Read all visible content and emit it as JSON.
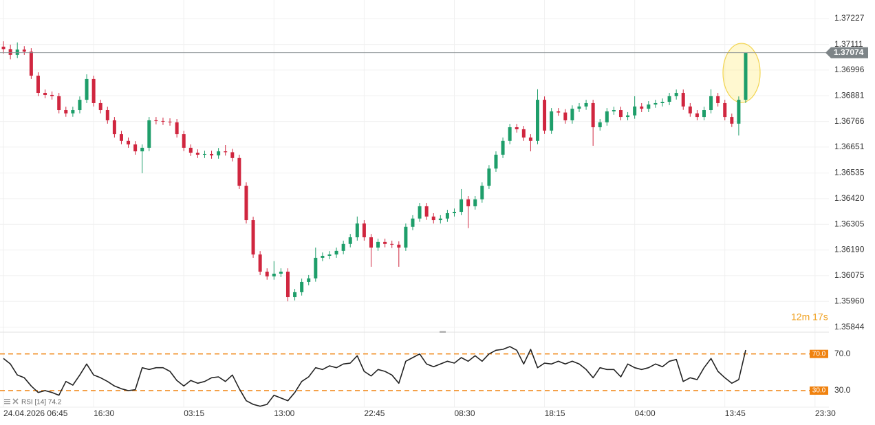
{
  "chart_data": [
    {
      "type": "candlestick",
      "up_color": "#1e9e6a",
      "down_color": "#d0263f",
      "ohlc": [
        [
          1.37101,
          1.37125,
          1.3707,
          1.3709
        ],
        [
          1.3709,
          1.3711,
          1.37044,
          1.37064
        ],
        [
          1.37064,
          1.3712,
          1.3705,
          1.37088
        ],
        [
          1.37088,
          1.37103,
          1.37064,
          1.37079
        ],
        [
          1.37079,
          1.37094,
          1.36956,
          1.36971
        ],
        [
          1.36971,
          1.36986,
          1.36879,
          1.36894
        ],
        [
          1.36894,
          1.36909,
          1.3687,
          1.36885
        ],
        [
          1.36885,
          1.369,
          1.36864,
          1.36879
        ],
        [
          1.36879,
          1.36894,
          1.36802,
          1.36817
        ],
        [
          1.36817,
          1.36832,
          1.36787,
          1.36802
        ],
        [
          1.36802,
          1.36832,
          1.36787,
          1.36817
        ],
        [
          1.36817,
          1.36878,
          1.36802,
          1.36863
        ],
        [
          1.36863,
          1.36977,
          1.36848,
          1.36956
        ],
        [
          1.36956,
          1.36971,
          1.36833,
          1.36848
        ],
        [
          1.36848,
          1.36863,
          1.36802,
          1.36817
        ],
        [
          1.36817,
          1.36832,
          1.36756,
          1.36771
        ],
        [
          1.36771,
          1.36786,
          1.36694,
          1.36709
        ],
        [
          1.36709,
          1.36724,
          1.36664,
          1.36679
        ],
        [
          1.36679,
          1.36694,
          1.36648,
          1.36663
        ],
        [
          1.36663,
          1.36678,
          1.36617,
          1.36632
        ],
        [
          1.36632,
          1.36663,
          1.36534,
          1.36648
        ],
        [
          1.36648,
          1.36786,
          1.36633,
          1.36771
        ],
        [
          1.36771,
          1.36786,
          1.36753,
          1.36768
        ],
        [
          1.36768,
          1.36783,
          1.3675,
          1.36765
        ],
        [
          1.36765,
          1.3678,
          1.36747,
          1.36762
        ],
        [
          1.36762,
          1.36777,
          1.36694,
          1.36709
        ],
        [
          1.36709,
          1.36724,
          1.36633,
          1.36648
        ],
        [
          1.36648,
          1.36663,
          1.36611,
          1.36626
        ],
        [
          1.36626,
          1.36641,
          1.36602,
          1.36617
        ],
        [
          1.36617,
          1.36635,
          1.36602,
          1.3662
        ],
        [
          1.3662,
          1.36635,
          1.36599,
          1.36614
        ],
        [
          1.36614,
          1.36647,
          1.36599,
          1.36632
        ],
        [
          1.36632,
          1.3666,
          1.36613,
          1.36628
        ],
        [
          1.36628,
          1.36643,
          1.36587,
          1.36602
        ],
        [
          1.36602,
          1.36617,
          1.36463,
          1.36478
        ],
        [
          1.36478,
          1.36493,
          1.36309,
          1.36324
        ],
        [
          1.36324,
          1.36339,
          1.36155,
          1.3617
        ],
        [
          1.3617,
          1.36185,
          1.36078,
          1.36093
        ],
        [
          1.36093,
          1.36108,
          1.36057,
          1.36072
        ],
        [
          1.36072,
          1.3614,
          1.36057,
          1.36084
        ],
        [
          1.36084,
          1.36108,
          1.36069,
          1.36093
        ],
        [
          1.36093,
          1.36108,
          1.3596,
          1.35979
        ],
        [
          1.35979,
          1.36016,
          1.35964,
          1.36001
        ],
        [
          1.36001,
          1.36062,
          1.35986,
          1.36047
        ],
        [
          1.36047,
          1.36078,
          1.36032,
          1.36063
        ],
        [
          1.36063,
          1.36201,
          1.36048,
          1.36155
        ],
        [
          1.36155,
          1.36179,
          1.3614,
          1.36164
        ],
        [
          1.36164,
          1.36185,
          1.36149,
          1.3617
        ],
        [
          1.3617,
          1.36201,
          1.36155,
          1.36186
        ],
        [
          1.36186,
          1.36232,
          1.36171,
          1.36217
        ],
        [
          1.36217,
          1.36262,
          1.36202,
          1.36247
        ],
        [
          1.36247,
          1.3634,
          1.36232,
          1.36309
        ],
        [
          1.36309,
          1.36324,
          1.36232,
          1.36247
        ],
        [
          1.36247,
          1.36262,
          1.36115,
          1.36201
        ],
        [
          1.36201,
          1.36241,
          1.36186,
          1.36226
        ],
        [
          1.36226,
          1.36241,
          1.36202,
          1.36217
        ],
        [
          1.36217,
          1.36232,
          1.36199,
          1.36214
        ],
        [
          1.36214,
          1.36229,
          1.36115,
          1.36201
        ],
        [
          1.36201,
          1.36309,
          1.36186,
          1.36294
        ],
        [
          1.36294,
          1.36346,
          1.36279,
          1.36331
        ],
        [
          1.36331,
          1.36401,
          1.36316,
          1.36386
        ],
        [
          1.36386,
          1.36401,
          1.36325,
          1.3634
        ],
        [
          1.3634,
          1.36355,
          1.36309,
          1.36324
        ],
        [
          1.36324,
          1.36346,
          1.36309,
          1.36331
        ],
        [
          1.36331,
          1.3637,
          1.36316,
          1.36355
        ],
        [
          1.36355,
          1.36376,
          1.3634,
          1.36361
        ],
        [
          1.36361,
          1.36463,
          1.36346,
          1.36417
        ],
        [
          1.36417,
          1.36432,
          1.36288,
          1.36386
        ],
        [
          1.36386,
          1.36432,
          1.36371,
          1.36417
        ],
        [
          1.36417,
          1.36493,
          1.36402,
          1.36478
        ],
        [
          1.36478,
          1.3657,
          1.36463,
          1.36555
        ],
        [
          1.36555,
          1.36632,
          1.3654,
          1.36617
        ],
        [
          1.36617,
          1.36694,
          1.36602,
          1.36679
        ],
        [
          1.36679,
          1.36755,
          1.36664,
          1.3674
        ],
        [
          1.3674,
          1.36755,
          1.36716,
          1.36731
        ],
        [
          1.36731,
          1.36746,
          1.36679,
          1.36694
        ],
        [
          1.36694,
          1.36709,
          1.36632,
          1.36679
        ],
        [
          1.36679,
          1.3691,
          1.36664,
          1.36863
        ],
        [
          1.36863,
          1.36878,
          1.3671,
          1.36725
        ],
        [
          1.36725,
          1.36826,
          1.3671,
          1.36811
        ],
        [
          1.36811,
          1.36826,
          1.36791,
          1.36806
        ],
        [
          1.36806,
          1.36821,
          1.36756,
          1.36771
        ],
        [
          1.36771,
          1.36838,
          1.36756,
          1.36823
        ],
        [
          1.36823,
          1.36848,
          1.36808,
          1.36833
        ],
        [
          1.36833,
          1.36863,
          1.36818,
          1.36848
        ],
        [
          1.36848,
          1.36863,
          1.36657,
          1.3674
        ],
        [
          1.3674,
          1.36777,
          1.36725,
          1.36762
        ],
        [
          1.36762,
          1.36826,
          1.36747,
          1.36811
        ],
        [
          1.36811,
          1.36832,
          1.36796,
          1.36817
        ],
        [
          1.36817,
          1.36832,
          1.36771,
          1.36786
        ],
        [
          1.36786,
          1.36808,
          1.36771,
          1.36793
        ],
        [
          1.36793,
          1.36879,
          1.36778,
          1.36833
        ],
        [
          1.36833,
          1.36848,
          1.36808,
          1.36823
        ],
        [
          1.36823,
          1.36857,
          1.36808,
          1.36842
        ],
        [
          1.36842,
          1.36863,
          1.36827,
          1.36848
        ],
        [
          1.36848,
          1.36869,
          1.36833,
          1.36854
        ],
        [
          1.36854,
          1.36894,
          1.36839,
          1.36879
        ],
        [
          1.36879,
          1.36909,
          1.36864,
          1.36894
        ],
        [
          1.36894,
          1.36909,
          1.36818,
          1.36833
        ],
        [
          1.36833,
          1.36848,
          1.36787,
          1.36802
        ],
        [
          1.36802,
          1.36817,
          1.36771,
          1.36786
        ],
        [
          1.36786,
          1.36832,
          1.36771,
          1.36817
        ],
        [
          1.36817,
          1.3691,
          1.36802,
          1.36879
        ],
        [
          1.36879,
          1.36894,
          1.36833,
          1.36848
        ],
        [
          1.36848,
          1.36863,
          1.36771,
          1.36786
        ],
        [
          1.36786,
          1.36801,
          1.36741,
          1.36756
        ],
        [
          1.36756,
          1.36878,
          1.36703,
          1.36863
        ],
        [
          1.36863,
          1.37074,
          1.36848,
          1.37074
        ]
      ],
      "last_price": 1.37074,
      "countdown": "12m 17s",
      "ylim": [
        1.35822,
        1.3731
      ],
      "yticks": [
        1.37227,
        1.37111,
        1.36996,
        1.36881,
        1.36766,
        1.36651,
        1.36535,
        {
          "value": 1.3642,
          "label": "1.36420"
        },
        1.36305,
        {
          "value": 1.3619,
          "label": "1.36190"
        },
        1.36075,
        {
          "value": 1.3596,
          "label": "1.35960"
        },
        1.35844
      ],
      "xlim": [
        -0.5,
        119
      ],
      "xticks": [
        {
          "value": 0,
          "label": "24.04.2026 06:45"
        },
        {
          "value": 13,
          "label": "16:30"
        },
        {
          "value": 26,
          "label": "03:15"
        },
        {
          "value": 39,
          "label": "13:00"
        },
        {
          "value": 52,
          "label": "22:45"
        },
        {
          "value": 65,
          "label": "08:30"
        },
        {
          "value": 78,
          "label": "18:15"
        },
        {
          "value": 91,
          "label": "04:00"
        },
        {
          "value": 104,
          "label": "13:45"
        },
        {
          "value": 117,
          "label": "23:30"
        }
      ],
      "grid": true
    },
    {
      "type": "line",
      "legend": "RSI [14] 74.2",
      "color": "#222222",
      "level_color": "#f0820f",
      "values": [
        65,
        59,
        47,
        44,
        35,
        28,
        30,
        28,
        25,
        40,
        36,
        47,
        59,
        47,
        44,
        40,
        35,
        32,
        30,
        31,
        55,
        53,
        55,
        55,
        51,
        41,
        35,
        41,
        38,
        40,
        44,
        45,
        40,
        47,
        32,
        19,
        15,
        13,
        15,
        25,
        22,
        19,
        28,
        40,
        45,
        55,
        53,
        57,
        55,
        59,
        60,
        68,
        51,
        46,
        53,
        51,
        47,
        38,
        62,
        66,
        70,
        59,
        56,
        59,
        62,
        60,
        66,
        62,
        68,
        62,
        70,
        74,
        75,
        78,
        74,
        59,
        75,
        55,
        60,
        59,
        62,
        59,
        62,
        59,
        53,
        44,
        55,
        53,
        53,
        45,
        59,
        55,
        53,
        55,
        59,
        56,
        62,
        64,
        40,
        44,
        42,
        55,
        65,
        51,
        44,
        38,
        42,
        74.2
      ],
      "ylim": [
        12,
        93
      ],
      "yticks": [
        {
          "value": 70,
          "label": "70.0"
        },
        {
          "value": 30,
          "label": "30.0"
        }
      ]
    }
  ]
}
